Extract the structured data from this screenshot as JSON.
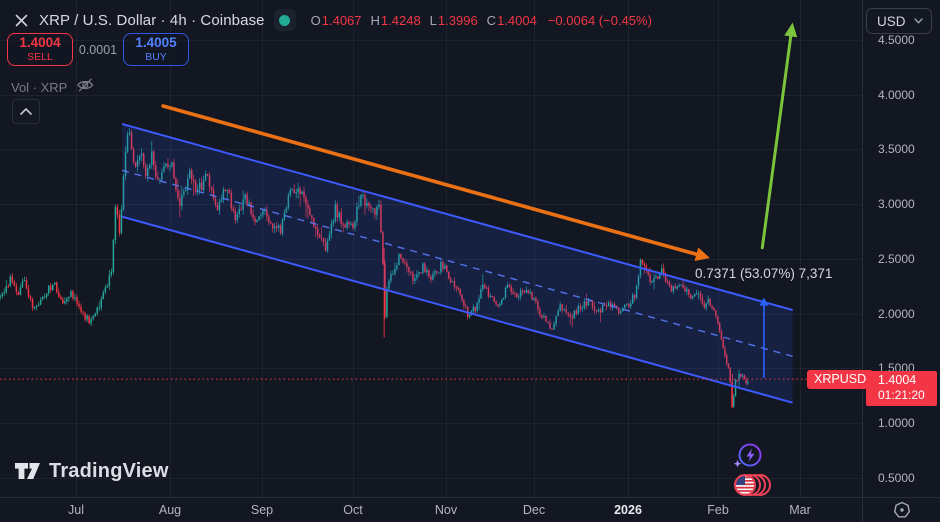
{
  "header": {
    "symbol_title": "XRP / U.S. Dollar · 4h · Coinbase",
    "ohlc": [
      {
        "k": "O",
        "v": "1.4067"
      },
      {
        "k": "H",
        "v": "1.4248"
      },
      {
        "k": "L",
        "v": "1.3996"
      },
      {
        "k": "C",
        "v": "1.4004"
      }
    ],
    "change": "−0.0064 (−0.45%)",
    "currency": "USD"
  },
  "trade_panel": {
    "sell_price": "1.4004",
    "sell_label": "SELL",
    "spread": "0.0001",
    "buy_price": "1.4005",
    "buy_label": "BUY"
  },
  "indicator_row": {
    "label": "Vol · XRP"
  },
  "price_label": {
    "symbol": "XRPUSD",
    "price": "1.4004",
    "countdown": "01:21:20"
  },
  "footer": {
    "brand": "TradingView"
  },
  "chart_data": {
    "type": "candlestick",
    "symbol": "XRP/USD",
    "interval": "4h",
    "exchange": "Coinbase",
    "ohlc_current": {
      "open": 1.4067,
      "high": 1.4248,
      "low": 1.3996,
      "close": 1.4004,
      "change": -0.0064,
      "change_pct": -0.45
    },
    "price_axis_ticks": [
      4.5,
      4.0,
      3.5,
      3.0,
      2.5,
      2.0,
      1.5,
      1.0,
      0.5
    ],
    "time_axis_labels": [
      {
        "text": "Jul",
        "bold": false
      },
      {
        "text": "Aug",
        "bold": false
      },
      {
        "text": "Sep",
        "bold": false
      },
      {
        "text": "Oct",
        "bold": false
      },
      {
        "text": "Nov",
        "bold": false
      },
      {
        "text": "Dec",
        "bold": false
      },
      {
        "text": "2026",
        "bold": true
      },
      {
        "text": "Feb",
        "bold": false
      },
      {
        "text": "Mar",
        "bold": false
      }
    ],
    "price_path_anchors": [
      [
        -0.81,
        2.15
      ],
      [
        -0.7,
        2.32
      ],
      [
        -0.62,
        2.18
      ],
      [
        -0.55,
        2.3
      ],
      [
        -0.45,
        2.02
      ],
      [
        -0.35,
        2.15
      ],
      [
        -0.25,
        2.28
      ],
      [
        -0.15,
        2.1
      ],
      [
        -0.05,
        2.18
      ],
      [
        0.05,
        2.02
      ],
      [
        0.15,
        1.92
      ],
      [
        0.25,
        2.1
      ],
      [
        0.32,
        2.25
      ],
      [
        0.38,
        2.42
      ],
      [
        0.42,
        3.02
      ],
      [
        0.46,
        2.68
      ],
      [
        0.52,
        3.45
      ],
      [
        0.56,
        3.66
      ],
      [
        0.62,
        3.3
      ],
      [
        0.68,
        3.52
      ],
      [
        0.74,
        3.22
      ],
      [
        0.8,
        3.45
      ],
      [
        0.88,
        3.18
      ],
      [
        0.95,
        3.4
      ],
      [
        1.02,
        3.32
      ],
      [
        1.1,
        2.98
      ],
      [
        1.2,
        3.28
      ],
      [
        1.3,
        3.12
      ],
      [
        1.4,
        3.25
      ],
      [
        1.5,
        2.95
      ],
      [
        1.6,
        3.18
      ],
      [
        1.72,
        2.85
      ],
      [
        1.82,
        3.05
      ],
      [
        1.92,
        2.82
      ],
      [
        2.0,
        2.98
      ],
      [
        2.1,
        2.82
      ],
      [
        2.2,
        2.75
      ],
      [
        2.3,
        3.1
      ],
      [
        2.4,
        3.18
      ],
      [
        2.5,
        2.92
      ],
      [
        2.6,
        2.75
      ],
      [
        2.7,
        2.6
      ],
      [
        2.8,
        2.95
      ],
      [
        2.9,
        2.82
      ],
      [
        3.0,
        2.8
      ],
      [
        3.08,
        3.06
      ],
      [
        3.15,
        2.98
      ],
      [
        3.22,
        2.92
      ],
      [
        3.28,
        2.95
      ],
      [
        3.315,
        2.6
      ],
      [
        3.33,
        1.8
      ],
      [
        3.36,
        2.25
      ],
      [
        3.42,
        2.38
      ],
      [
        3.5,
        2.52
      ],
      [
        3.58,
        2.4
      ],
      [
        3.65,
        2.28
      ],
      [
        3.75,
        2.42
      ],
      [
        3.85,
        2.32
      ],
      [
        3.95,
        2.45
      ],
      [
        4.05,
        2.3
      ],
      [
        4.15,
        2.18
      ],
      [
        4.25,
        1.98
      ],
      [
        4.33,
        2.05
      ],
      [
        4.42,
        2.25
      ],
      [
        4.5,
        2.15
      ],
      [
        4.6,
        2.05
      ],
      [
        4.7,
        2.25
      ],
      [
        4.8,
        2.18
      ],
      [
        4.9,
        2.22
      ],
      [
        5.0,
        2.1
      ],
      [
        5.1,
        1.95
      ],
      [
        5.18,
        1.86
      ],
      [
        5.28,
        2.06
      ],
      [
        5.38,
        1.96
      ],
      [
        5.48,
        2.05
      ],
      [
        5.58,
        2.12
      ],
      [
        5.68,
        2.02
      ],
      [
        5.78,
        2.1
      ],
      [
        5.88,
        2.02
      ],
      [
        5.95,
        2.06
      ],
      [
        6.02,
        2.08
      ],
      [
        6.08,
        2.2
      ],
      [
        6.14,
        2.5
      ],
      [
        6.2,
        2.36
      ],
      [
        6.28,
        2.28
      ],
      [
        6.36,
        2.4
      ],
      [
        6.44,
        2.26
      ],
      [
        6.52,
        2.2
      ],
      [
        6.6,
        2.28
      ],
      [
        6.68,
        2.16
      ],
      [
        6.76,
        2.2
      ],
      [
        6.84,
        2.08
      ],
      [
        6.9,
        2.12
      ],
      [
        6.96,
        1.98
      ],
      [
        7.02,
        1.86
      ],
      [
        7.08,
        1.62
      ],
      [
        7.13,
        1.48
      ],
      [
        7.17,
        1.14
      ],
      [
        7.21,
        1.38
      ],
      [
        7.27,
        1.44
      ],
      [
        7.33,
        1.38
      ],
      [
        7.38,
        1.4
      ]
    ],
    "spikes": [
      {
        "m": 3.33,
        "from": 2.6,
        "to": 1.78
      },
      {
        "m": 7.17,
        "from": 1.45,
        "to": 1.14
      }
    ],
    "drawings": {
      "channel": {
        "m1": 0.49,
        "m2": 7.91,
        "top_p1": 3.732,
        "top_p2": 2.032,
        "bottom_p1": 2.885,
        "bottom_p2": 1.185
      },
      "down_arrow": {
        "m1": 0.926,
        "p1": 3.897,
        "m2": 6.91,
        "p2": 2.507
      },
      "up_arrow": {
        "m1": 7.54,
        "p1": 2.6,
        "m2": 7.91,
        "p2": 4.66
      },
      "range_arrow": {
        "m": 7.56,
        "p_from": 1.41,
        "p_to": 2.145,
        "label": "0.7371 (53.07%) 7,371"
      },
      "current_price_line": {
        "p": 1.4004
      }
    },
    "colors": {
      "up": "#26a69a",
      "down": "#f23645",
      "channel": "#3d5afe",
      "channel_fill": "rgba(45,85,232,0.16)",
      "channel_mid": "#5b7cff",
      "down_arrow": "#ec7114",
      "up_arrow": "#7cc43c",
      "range_arrow": "#2962ff",
      "price_line": "#f23645",
      "grid": "rgba(240,243,250,0.055)"
    }
  }
}
